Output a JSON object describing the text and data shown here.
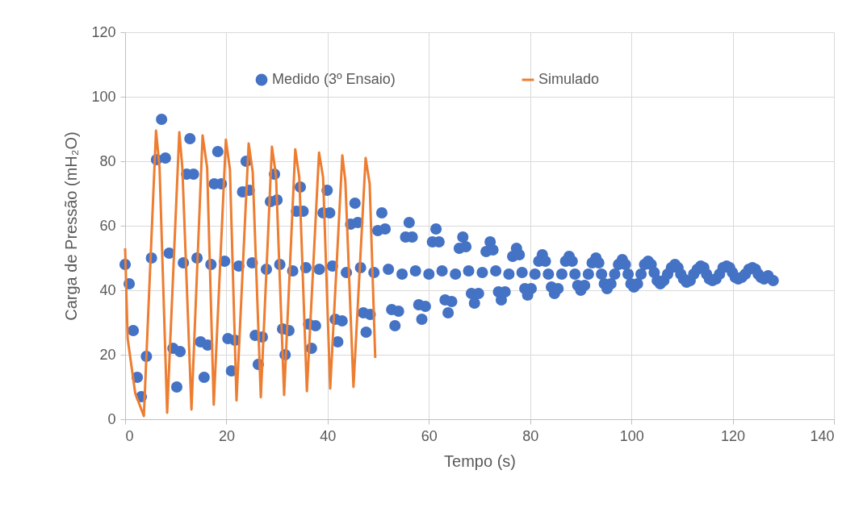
{
  "chart_data": {
    "type": "scatter",
    "xlabel": "Tempo (s)",
    "ylabel": "Carga de Pressão (mH₂O)",
    "xlim": [
      0,
      140
    ],
    "ylim": [
      0,
      120
    ],
    "xticks": [
      0,
      20,
      40,
      60,
      80,
      100,
      120,
      140
    ],
    "yticks": [
      0,
      20,
      40,
      60,
      80,
      100,
      120
    ],
    "grid": true,
    "legend": "top",
    "line_style": "solid",
    "series": [
      {
        "name": "Medido (3º Ensaio)",
        "type": "scatter",
        "marker": "circle",
        "color": "#4472c4",
        "x": [
          0,
          0.8,
          1.6,
          2.4,
          3.2,
          4.2,
          5.2,
          6.2,
          7.2,
          7.95,
          8.7,
          9.45,
          10.2,
          10.85,
          11.5,
          12.15,
          12.8,
          13.5,
          14.2,
          14.9,
          15.6,
          16.3,
          16.95,
          17.6,
          18.3,
          19,
          19.65,
          20.3,
          21,
          21.7,
          22.45,
          23.2,
          23.9,
          24.5,
          25.1,
          25.7,
          26.3,
          27.1,
          27.9,
          28.7,
          29.5,
          30,
          30.55,
          31.1,
          31.6,
          32.35,
          33.1,
          33.85,
          34.6,
          35.15,
          35.7,
          36.25,
          36.8,
          37.6,
          38.35,
          39.1,
          39.9,
          40.4,
          40.95,
          41.5,
          42,
          42.85,
          43.7,
          44.55,
          45.4,
          45.95,
          46.5,
          47.05,
          47.6,
          48.4,
          49.15,
          49.9,
          50.7,
          51.35,
          52,
          52.65,
          53.3,
          54,
          54.7,
          55.4,
          56.1,
          56.7,
          57.35,
          58,
          58.6,
          59.3,
          60,
          60.7,
          61.4,
          62,
          62.6,
          63.2,
          63.8,
          64.5,
          65.25,
          66,
          66.7,
          67.3,
          67.85,
          68.4,
          69,
          69.8,
          70.55,
          71.3,
          72.1,
          72.65,
          73.2,
          73.75,
          74.3,
          75.05,
          75.8,
          76.55,
          77.3,
          77.85,
          78.4,
          78.95,
          79.5,
          80.2,
          80.95,
          81.7,
          82.4,
          83,
          83.6,
          84.2,
          84.8,
          85.5,
          86.25,
          87,
          87.7,
          88.3,
          88.85,
          89.4,
          90,
          90.75,
          91.5,
          92.25,
          93,
          93.55,
          94.1,
          94.65,
          95.2,
          95.95,
          96.7,
          97.45,
          98.2,
          98.8,
          99.35,
          99.9,
          100.5,
          101.2,
          101.9,
          102.6,
          103.3,
          103.9,
          104.5,
          105.1,
          105.7,
          106.4,
          107.15,
          107.9,
          108.6,
          109.2,
          109.75,
          110.3,
          110.9,
          111.6,
          112.3,
          113,
          113.7,
          114.3,
          114.85,
          115.4,
          116,
          116.7,
          117.4,
          118.1,
          118.8,
          119.4,
          119.95,
          120.5,
          121.1,
          121.8,
          122.5,
          123.2,
          123.9,
          124.5,
          125.05,
          125.6,
          126.2,
          127,
          128
        ],
        "values": [
          48,
          42,
          27.5,
          13,
          7,
          19.5,
          50,
          80.5,
          93,
          81,
          51.5,
          22,
          10,
          21,
          48.5,
          76,
          87,
          76,
          50,
          24,
          13,
          23,
          48,
          73,
          83,
          73,
          49,
          25,
          15,
          24.5,
          47.5,
          70.5,
          80,
          71,
          48.5,
          26,
          17,
          25.5,
          46.5,
          67.5,
          76,
          68,
          48,
          28,
          20,
          27.5,
          46,
          64.5,
          72,
          64.5,
          47,
          29.5,
          22,
          29,
          46.5,
          64,
          71,
          64,
          47.5,
          31,
          24,
          30.5,
          45.5,
          60.5,
          67,
          61,
          47,
          33,
          27,
          32.5,
          45.5,
          58.5,
          64,
          59,
          46.5,
          34,
          29,
          33.5,
          45,
          56.5,
          61,
          56.5,
          46,
          35.5,
          31,
          35,
          45,
          55,
          59,
          55,
          46,
          37,
          33,
          36.5,
          45,
          53,
          56.5,
          53.5,
          46,
          39,
          36,
          39,
          45.5,
          52,
          55,
          52.5,
          46,
          39.5,
          37,
          39.5,
          45,
          50.5,
          53,
          51,
          45.5,
          40.5,
          38.5,
          40.5,
          45,
          49,
          51,
          49,
          45,
          41,
          39,
          40.5,
          45,
          49,
          50.5,
          49,
          45,
          41.5,
          40,
          41.5,
          45,
          48.5,
          50,
          48.5,
          45,
          42,
          40.5,
          42,
          45,
          48,
          49.5,
          48,
          45,
          42,
          41,
          42,
          45,
          48,
          49,
          48,
          45.5,
          43,
          42,
          43,
          45,
          47,
          48,
          47,
          45,
          43.5,
          42.5,
          43,
          45,
          46.5,
          47.5,
          47,
          45,
          43.5,
          43,
          43.5,
          45,
          47,
          47.5,
          47,
          45.5,
          44,
          43.5,
          44,
          45,
          46.5,
          47,
          46.5,
          45,
          44,
          43.5,
          44.5,
          43
        ]
      },
      {
        "name": "Simulado",
        "type": "line",
        "marker": "none",
        "color": "#ed7d31",
        "x": [
          0,
          0.5,
          2,
          3.7,
          6.1,
          6.8,
          8.3,
          10.7,
          11.3,
          13.1,
          15.3,
          16.2,
          17.5,
          19.9,
          20.7,
          22,
          24.4,
          25.2,
          26.8,
          29,
          29.8,
          31.4,
          33.6,
          34.4,
          35.9,
          38.3,
          39.1,
          40.5,
          42.9,
          43.5,
          45.1,
          47.5,
          48.3,
          49.4
        ],
        "values": [
          53,
          25,
          8,
          1,
          89.5,
          78,
          2,
          89,
          78,
          3,
          88,
          78,
          4.5,
          86.7,
          77.5,
          5.8,
          85.5,
          76.7,
          6.8,
          84.5,
          75.5,
          7.5,
          83.7,
          75,
          8.7,
          82.7,
          75,
          9.5,
          81.8,
          73.8,
          10,
          81,
          73,
          19
        ]
      }
    ]
  }
}
